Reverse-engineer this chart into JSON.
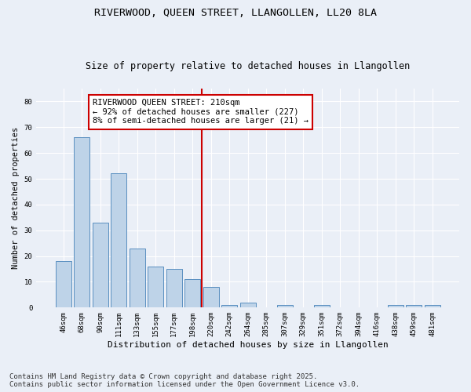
{
  "title": "RIVERWOOD, QUEEN STREET, LLANGOLLEN, LL20 8LA",
  "subtitle": "Size of property relative to detached houses in Llangollen",
  "xlabel": "Distribution of detached houses by size in Llangollen",
  "ylabel": "Number of detached properties",
  "categories": [
    "46sqm",
    "68sqm",
    "90sqm",
    "111sqm",
    "133sqm",
    "155sqm",
    "177sqm",
    "198sqm",
    "220sqm",
    "242sqm",
    "264sqm",
    "285sqm",
    "307sqm",
    "329sqm",
    "351sqm",
    "372sqm",
    "394sqm",
    "416sqm",
    "438sqm",
    "459sqm",
    "481sqm"
  ],
  "values": [
    18,
    66,
    33,
    52,
    23,
    16,
    15,
    11,
    8,
    1,
    2,
    0,
    1,
    0,
    1,
    0,
    0,
    0,
    1,
    1,
    1
  ],
  "bar_color": "#bed3e8",
  "bar_edge_color": "#5a8fc0",
  "vline_x_index": 8,
  "vline_color": "#cc0000",
  "annotation_text": "RIVERWOOD QUEEN STREET: 210sqm\n← 92% of detached houses are smaller (227)\n8% of semi-detached houses are larger (21) →",
  "annotation_box_edge_color": "#cc0000",
  "ylim": [
    0,
    85
  ],
  "yticks": [
    0,
    10,
    20,
    30,
    40,
    50,
    60,
    70,
    80
  ],
  "background_color": "#eaeff7",
  "footnote": "Contains HM Land Registry data © Crown copyright and database right 2025.\nContains public sector information licensed under the Open Government Licence v3.0.",
  "title_fontsize": 9.5,
  "subtitle_fontsize": 8.5,
  "xlabel_fontsize": 8,
  "ylabel_fontsize": 7.5,
  "tick_fontsize": 6.5,
  "annotation_fontsize": 7.5,
  "footnote_fontsize": 6.5
}
